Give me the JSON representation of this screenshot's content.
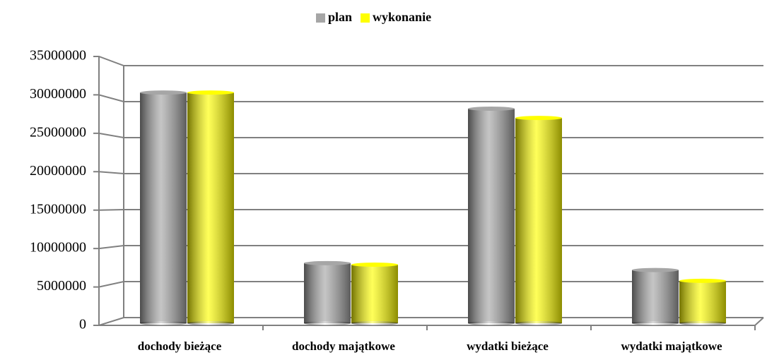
{
  "chart_data": {
    "type": "bar",
    "categories": [
      "dochody bieżące",
      "dochody majątkowe",
      "wydatki bieżące",
      "wydatki majątkowe"
    ],
    "series": [
      {
        "name": "plan",
        "color": "#a6a6a6",
        "values": [
          30300000,
          8100000,
          28200000,
          7200000
        ]
      },
      {
        "name": "wykonanie",
        "color": "#ffff00",
        "values": [
          30300000,
          7900000,
          27000000,
          5800000
        ]
      }
    ],
    "ylim": [
      0,
      35000000
    ],
    "yticks": [
      0,
      5000000,
      10000000,
      15000000,
      20000000,
      25000000,
      30000000,
      35000000
    ],
    "grid": true,
    "legend": "top"
  }
}
